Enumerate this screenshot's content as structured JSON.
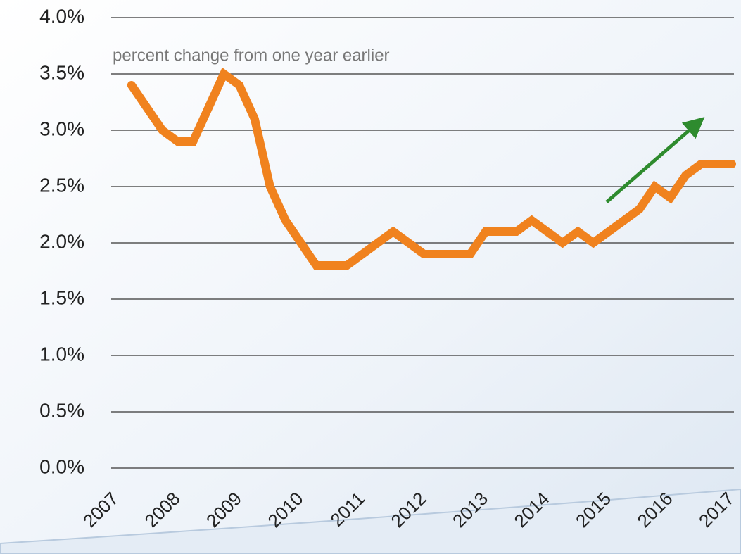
{
  "chart_data": {
    "type": "line",
    "annotation": "percent change from one year earlier",
    "xlim": [
      2007,
      2017
    ],
    "xticks": [
      2007,
      2008,
      2009,
      2010,
      2011,
      2012,
      2013,
      2014,
      2015,
      2016,
      2017
    ],
    "ylim": [
      0,
      4
    ],
    "yticks": [
      {
        "value": 0,
        "label": "0.0%"
      },
      {
        "value": 0.5,
        "label": "0.5%"
      },
      {
        "value": 1,
        "label": "1.0%"
      },
      {
        "value": 1.5,
        "label": "1.5%"
      },
      {
        "value": 2,
        "label": "2.0%"
      },
      {
        "value": 2.5,
        "label": "2.5%"
      },
      {
        "value": 3,
        "label": "3.0%"
      },
      {
        "value": 3.5,
        "label": "3.5%"
      },
      {
        "value": 4,
        "label": "4.0%"
      }
    ],
    "grid": true,
    "x": [
      2007.25,
      2007.5,
      2007.75,
      2008,
      2008.25,
      2008.5,
      2008.75,
      2009,
      2009.25,
      2009.5,
      2009.75,
      2010,
      2010.25,
      2010.5,
      2010.75,
      2011,
      2011.25,
      2011.5,
      2011.75,
      2012,
      2012.25,
      2012.5,
      2012.75,
      2013,
      2013.25,
      2013.5,
      2013.75,
      2014,
      2014.25,
      2014.5,
      2014.75,
      2015,
      2015.25,
      2015.5,
      2015.75,
      2016,
      2016.25,
      2016.5,
      2016.75,
      2017
    ],
    "series": [
      {
        "color": "#f0821e",
        "values": [
          3.4,
          3.2,
          3.0,
          2.9,
          2.9,
          3.2,
          3.5,
          3.4,
          3.1,
          2.5,
          2.2,
          2.0,
          1.8,
          1.8,
          1.8,
          1.9,
          2.0,
          2.1,
          2.0,
          1.9,
          1.9,
          1.9,
          1.9,
          2.1,
          2.1,
          2.1,
          2.2,
          2.1,
          2.0,
          2.1,
          2.0,
          2.1,
          2.2,
          2.3,
          2.5,
          2.4,
          2.6,
          2.7,
          2.7,
          2.7
        ]
      }
    ]
  }
}
